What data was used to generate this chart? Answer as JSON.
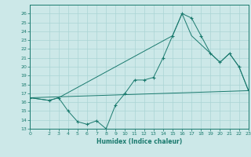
{
  "xlabel": "Humidex (Indice chaleur)",
  "ylabel": "",
  "bg_color": "#cce8e8",
  "line_color": "#1a7a6e",
  "grid_color": "#aad4d4",
  "ylim": [
    13,
    27
  ],
  "xlim": [
    0,
    23
  ],
  "yticks": [
    13,
    14,
    15,
    16,
    17,
    18,
    19,
    20,
    21,
    22,
    23,
    24,
    25,
    26
  ],
  "xticks": [
    0,
    2,
    3,
    4,
    5,
    6,
    7,
    8,
    9,
    10,
    11,
    12,
    13,
    14,
    15,
    16,
    17,
    18,
    19,
    20,
    21,
    22,
    23
  ],
  "xtick_labels": [
    "0",
    "2",
    "3",
    "4",
    "5",
    "6",
    "7",
    "8",
    "9",
    "10",
    "11",
    "12",
    "13",
    "14",
    "15",
    "16",
    "17",
    "18",
    "19",
    "20",
    "21",
    "22",
    "23"
  ],
  "line1_x": [
    0,
    2,
    3,
    4,
    5,
    6,
    7,
    8,
    9,
    10,
    11,
    12,
    13,
    14,
    15,
    16,
    17,
    18,
    19,
    20,
    21,
    22,
    23
  ],
  "line1_y": [
    16.5,
    16.2,
    16.5,
    15.0,
    13.8,
    13.5,
    13.9,
    13.0,
    15.7,
    17.0,
    18.5,
    18.5,
    18.8,
    21.0,
    23.5,
    26.0,
    25.5,
    23.5,
    21.5,
    20.5,
    21.5,
    20.0,
    17.3
  ],
  "line2_x": [
    0,
    2,
    3,
    15,
    16,
    17,
    19,
    20,
    21,
    22,
    23
  ],
  "line2_y": [
    16.5,
    16.2,
    16.5,
    23.5,
    26.0,
    23.5,
    21.5,
    20.5,
    21.5,
    20.0,
    17.3
  ],
  "line3_x": [
    0,
    23
  ],
  "line3_y": [
    16.5,
    17.3
  ]
}
